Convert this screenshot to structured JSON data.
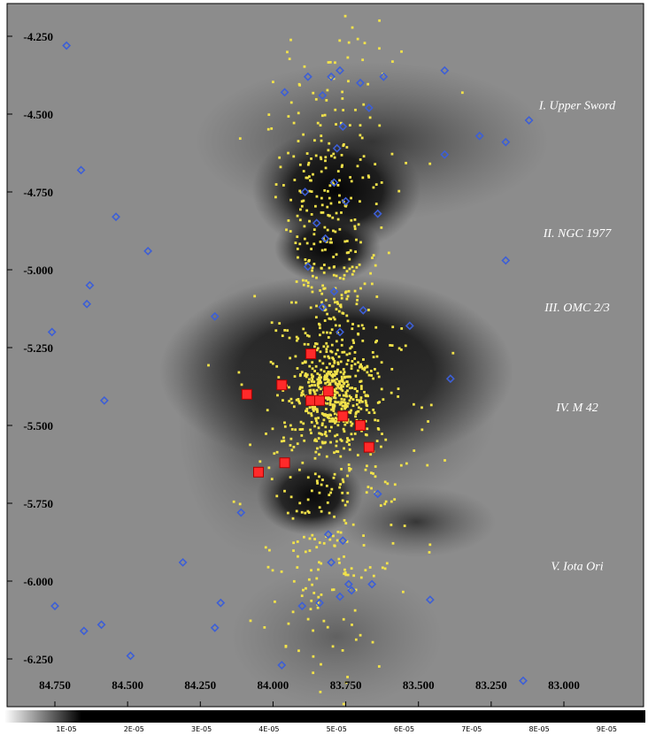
{
  "chart_data": {
    "type": "scatter",
    "title": "",
    "xlabel": "",
    "ylabel": "",
    "xlim": [
      84.8,
      82.8
    ],
    "ylim": [
      -6.35,
      -4.18
    ],
    "x_ticks": [
      "84.750",
      "84.500",
      "84.250",
      "84.000",
      "83.750",
      "83.500",
      "83.250",
      "83.000"
    ],
    "x_tick_values": [
      84.75,
      84.5,
      84.25,
      84.0,
      83.75,
      83.5,
      83.25,
      83.0
    ],
    "y_ticks": [
      "-4.250",
      "-4.500",
      "-4.750",
      "-5.000",
      "-5.250",
      "-5.500",
      "-5.750",
      "-6.000",
      "-6.250"
    ],
    "y_tick_values": [
      -4.25,
      -4.5,
      -4.75,
      -5.0,
      -5.25,
      -5.5,
      -5.75,
      -6.0,
      -6.25
    ],
    "background": "grayscale nebula image (M42 / Orion A)",
    "regions": [
      {
        "label": "I.  Upper Sword",
        "y": -4.47
      },
      {
        "label": "II.  NGC 1977",
        "y": -4.88
      },
      {
        "label": "III.  OMC 2/3",
        "y": -5.12
      },
      {
        "label": "IV.  M 42",
        "y": -5.44
      },
      {
        "label": "V.  Iota Ori",
        "y": -5.95
      }
    ],
    "colorbar": {
      "ticks": [
        "1E-05",
        "2E-05",
        "3E-05",
        "4E-05",
        "5E-05",
        "6E-05",
        "7E-05",
        "8E-05",
        "9E-05"
      ],
      "tick_values": [
        1,
        2,
        3,
        4,
        5,
        6,
        7,
        8,
        9
      ]
    },
    "series": [
      {
        "marker": "square",
        "color": "#ff2a2a",
        "points": [
          [
            84.09,
            -5.4
          ],
          [
            83.97,
            -5.37
          ],
          [
            83.87,
            -5.27
          ],
          [
            83.87,
            -5.42
          ],
          [
            83.84,
            -5.42
          ],
          [
            83.81,
            -5.39
          ],
          [
            83.76,
            -5.47
          ],
          [
            83.7,
            -5.5
          ],
          [
            83.67,
            -5.57
          ],
          [
            83.96,
            -5.62
          ],
          [
            84.05,
            -5.65
          ]
        ]
      },
      {
        "marker": "diamond",
        "color": "#3d5fd6",
        "points": [
          [
            84.71,
            -4.28
          ],
          [
            84.66,
            -4.68
          ],
          [
            84.54,
            -4.83
          ],
          [
            84.43,
            -4.94
          ],
          [
            84.63,
            -5.05
          ],
          [
            84.64,
            -5.11
          ],
          [
            84.76,
            -5.2
          ],
          [
            84.58,
            -5.42
          ],
          [
            84.31,
            -5.94
          ],
          [
            84.75,
            -6.08
          ],
          [
            84.65,
            -6.16
          ],
          [
            84.59,
            -6.14
          ],
          [
            84.49,
            -6.24
          ],
          [
            84.2,
            -6.15
          ],
          [
            84.18,
            -6.07
          ],
          [
            84.11,
            -5.78
          ],
          [
            84.2,
            -5.15
          ],
          [
            83.96,
            -4.43
          ],
          [
            83.88,
            -4.38
          ],
          [
            83.83,
            -4.44
          ],
          [
            83.8,
            -4.38
          ],
          [
            83.77,
            -4.36
          ],
          [
            83.7,
            -4.4
          ],
          [
            83.67,
            -4.48
          ],
          [
            83.62,
            -4.38
          ],
          [
            83.76,
            -4.54
          ],
          [
            83.78,
            -4.61
          ],
          [
            83.89,
            -4.75
          ],
          [
            83.79,
            -4.72
          ],
          [
            83.75,
            -4.78
          ],
          [
            83.64,
            -4.82
          ],
          [
            83.85,
            -4.85
          ],
          [
            83.82,
            -4.9
          ],
          [
            83.88,
            -4.99
          ],
          [
            83.79,
            -5.07
          ],
          [
            83.83,
            -5.12
          ],
          [
            83.69,
            -5.13
          ],
          [
            83.77,
            -5.2
          ],
          [
            83.53,
            -5.18
          ],
          [
            83.41,
            -4.36
          ],
          [
            83.41,
            -4.63
          ],
          [
            83.29,
            -4.57
          ],
          [
            83.2,
            -4.59
          ],
          [
            83.12,
            -4.52
          ],
          [
            83.2,
            -4.97
          ],
          [
            83.39,
            -5.35
          ],
          [
            83.64,
            -5.72
          ],
          [
            83.81,
            -5.85
          ],
          [
            83.76,
            -5.87
          ],
          [
            83.8,
            -5.94
          ],
          [
            83.74,
            -6.01
          ],
          [
            83.73,
            -6.03
          ],
          [
            83.66,
            -6.01
          ],
          [
            83.77,
            -6.05
          ],
          [
            83.84,
            -6.07
          ],
          [
            83.9,
            -6.08
          ],
          [
            83.46,
            -6.06
          ],
          [
            83.97,
            -6.27
          ],
          [
            83.14,
            -6.32
          ]
        ]
      },
      {
        "marker": "dot",
        "color": "#f2e24a",
        "description_count": 1100,
        "distribution": [
          {
            "cx": 83.8,
            "cy": -5.4,
            "sx": 0.06,
            "sy": 0.07,
            "n": 360
          },
          {
            "cx": 83.78,
            "cy": -5.45,
            "sx": 0.14,
            "sy": 0.18,
            "n": 320
          },
          {
            "cx": 83.8,
            "cy": -4.78,
            "sx": 0.08,
            "sy": 0.14,
            "n": 160
          },
          {
            "cx": 83.8,
            "cy": -5.1,
            "sx": 0.07,
            "sy": 0.1,
            "n": 90
          },
          {
            "cx": 83.82,
            "cy": -5.95,
            "sx": 0.12,
            "sy": 0.17,
            "n": 130
          },
          {
            "cx": 83.8,
            "cy": -4.45,
            "sx": 0.12,
            "sy": 0.12,
            "n": 60
          }
        ]
      }
    ]
  }
}
